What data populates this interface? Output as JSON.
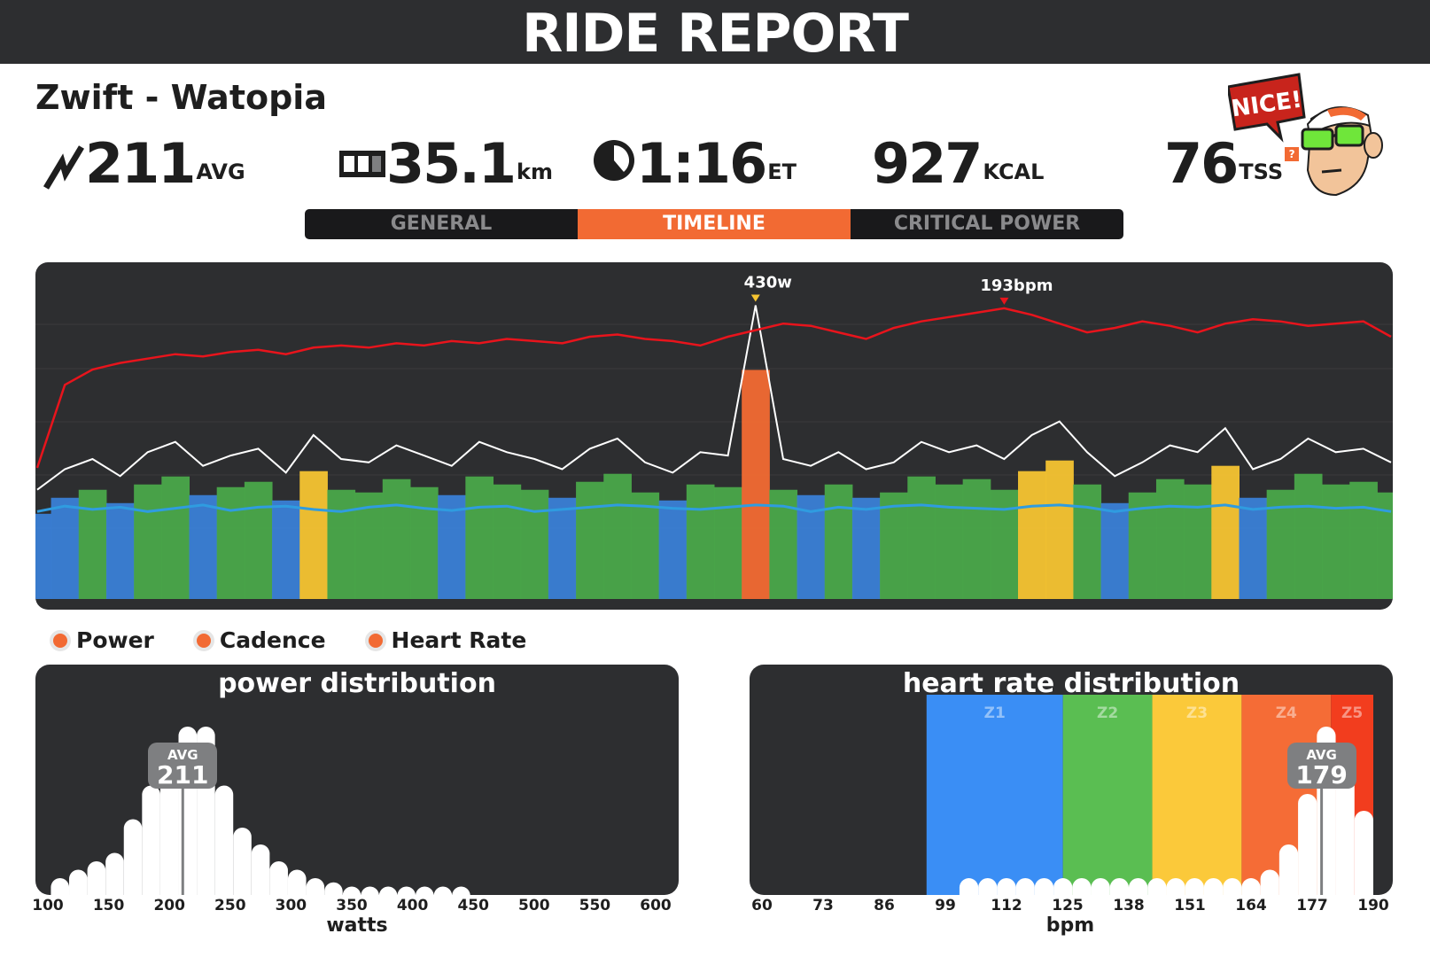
{
  "header": {
    "title": "RIDE REPORT"
  },
  "ride": {
    "name": "Zwift - Watopia"
  },
  "stats": {
    "power": {
      "value": "211",
      "unit": "AVG"
    },
    "distance": {
      "value": "35.1",
      "unit": "km"
    },
    "time": {
      "value": "1:16",
      "unit": "ET"
    },
    "energy": {
      "value": "927",
      "unit": "KCAL"
    },
    "tss": {
      "value": "76",
      "unit": "TSS",
      "help": "?"
    }
  },
  "badge": {
    "text": "NICE!"
  },
  "tabs": [
    {
      "label": "GENERAL",
      "active": false
    },
    {
      "label": "TIMELINE",
      "active": true
    },
    {
      "label": "CRITICAL POWER",
      "active": false
    }
  ],
  "timeline": {
    "peak_power_label": "430w",
    "peak_hr_label": "193bpm",
    "colors": {
      "heart_rate": "#e8141c",
      "power": "#ffffff",
      "cadence": "#2f9ce0",
      "z1": "#3a7fd6",
      "z2": "#4aa84a",
      "z3": "#f5c431",
      "z4": "#f26a33"
    }
  },
  "legend": [
    "Power",
    "Cadence",
    "Heart Rate"
  ],
  "chart_data": [
    {
      "type": "line",
      "series": [
        {
          "name": "Power",
          "y": [
            160,
            190,
            205,
            180,
            215,
            230,
            195,
            210,
            220,
            185,
            240,
            205,
            200,
            225,
            210,
            195,
            230,
            215,
            205,
            190,
            220,
            235,
            200,
            185,
            215,
            210,
            430,
            205,
            195,
            215,
            190,
            200,
            230,
            215,
            225,
            205,
            240,
            260,
            215,
            180,
            200,
            225,
            215,
            250,
            190,
            205,
            235,
            215,
            220,
            200
          ]
        },
        {
          "name": "Cadence",
          "y": [
            80,
            85,
            82,
            84,
            80,
            83,
            86,
            81,
            84,
            85,
            82,
            80,
            84,
            86,
            83,
            81,
            84,
            85,
            80,
            82,
            84,
            86,
            85,
            83,
            82,
            84,
            86,
            85,
            80,
            84,
            82,
            85,
            86,
            84,
            83,
            82,
            85,
            86,
            84,
            80,
            83,
            85,
            84,
            86,
            82,
            84,
            85,
            83,
            84,
            80
          ]
        },
        {
          "name": "Heart Rate",
          "y": [
            120,
            158,
            165,
            168,
            170,
            172,
            171,
            173,
            174,
            172,
            175,
            176,
            175,
            177,
            176,
            178,
            177,
            179,
            178,
            177,
            180,
            181,
            179,
            178,
            176,
            180,
            183,
            186,
            185,
            182,
            179,
            184,
            187,
            189,
            191,
            193,
            190,
            186,
            182,
            184,
            187,
            185,
            182,
            186,
            188,
            187,
            185,
            186,
            187,
            180
          ]
        }
      ]
    },
    {
      "type": "bar",
      "title": "power distribution",
      "xlabel": "watts",
      "ticks": [
        "100",
        "150",
        "200",
        "250",
        "300",
        "350",
        "400",
        "450",
        "500",
        "550",
        "600"
      ],
      "xlim": [
        100,
        600
      ],
      "x": [
        110,
        125,
        140,
        155,
        170,
        185,
        200,
        215,
        230,
        245,
        260,
        275,
        290,
        305,
        320,
        335,
        350,
        365,
        380,
        395,
        410,
        425,
        440
      ],
      "values": [
        2,
        3,
        4,
        5,
        9,
        13,
        18,
        20,
        20,
        13,
        8,
        6,
        4,
        3,
        2,
        1.5,
        1,
        1,
        1,
        1,
        1,
        1,
        1
      ],
      "avg_label": "AVG",
      "avg": "211",
      "color": "#ffffff"
    },
    {
      "type": "bar",
      "title": "heart rate distribution",
      "xlabel": "bpm",
      "ticks": [
        "60",
        "73",
        "86",
        "99",
        "112",
        "125",
        "138",
        "151",
        "164",
        "177",
        "190"
      ],
      "xlim": [
        60,
        190
      ],
      "x": [
        104,
        108,
        112,
        116,
        120,
        124,
        128,
        132,
        136,
        140,
        144,
        148,
        152,
        156,
        160,
        164,
        168,
        172,
        176,
        180,
        184,
        188
      ],
      "values": [
        1,
        1,
        1,
        1,
        1,
        1,
        1,
        1,
        1,
        1,
        1,
        1,
        1,
        1,
        1,
        1,
        1.5,
        3,
        6,
        10,
        7,
        5
      ],
      "zones": [
        {
          "label": "Z1",
          "from": 95,
          "to": 124,
          "color": "#3a8ef5"
        },
        {
          "label": "Z2",
          "from": 124,
          "to": 143,
          "color": "#5abe52"
        },
        {
          "label": "Z3",
          "from": 143,
          "to": 162,
          "color": "#fbc93a"
        },
        {
          "label": "Z4",
          "from": 162,
          "to": 181,
          "color": "#f56c36"
        },
        {
          "label": "Z5",
          "from": 181,
          "to": 190,
          "color": "#f23d1e"
        }
      ],
      "avg_label": "AVG",
      "avg": "179",
      "color": "#ffffff"
    }
  ]
}
